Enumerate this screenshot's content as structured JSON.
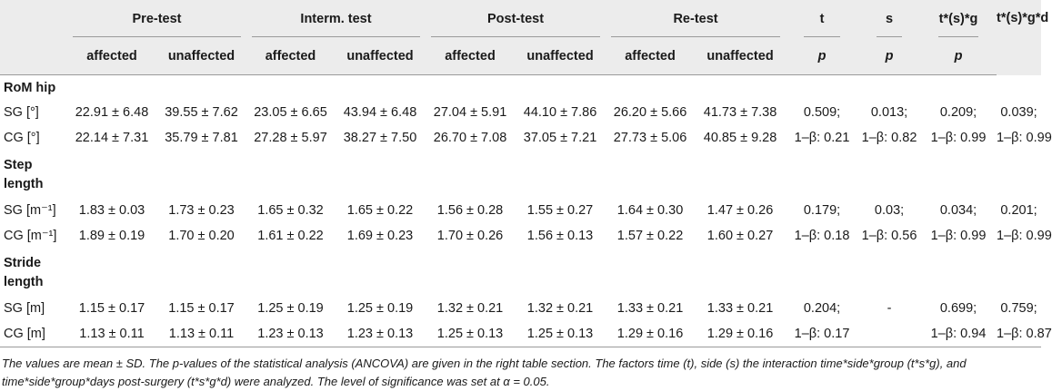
{
  "header": {
    "groups": [
      "Pre-test",
      "Interm. test",
      "Post-test",
      "Re-test"
    ],
    "stat_cols": [
      "t",
      "s",
      "t*(s)*g",
      "t*(s)*g*d"
    ],
    "sub_labels": [
      "affected",
      "unaffected"
    ],
    "p_label": "p"
  },
  "sections": [
    {
      "title": "RoM hip",
      "rows": [
        {
          "label": "SG [°]",
          "cells": [
            "22.91 ± 6.48",
            "39.55 ± 7.62",
            "23.05 ± 6.65",
            "43.94 ± 6.48",
            "27.04 ± 5.91",
            "44.10 ± 7.86",
            "26.20 ± 5.66",
            "41.73 ± 7.38"
          ],
          "stats": [
            "0.509;",
            "0.013;",
            "0.209;",
            "0.039;"
          ]
        },
        {
          "label": "CG [°]",
          "cells": [
            "22.14 ± 7.31",
            "35.79 ± 7.81",
            "27.28 ± 5.97",
            "38.27 ± 7.50",
            "26.70 ± 7.08",
            "37.05 ± 7.21",
            "27.73 ± 5.06",
            "40.85 ± 9.28"
          ],
          "stats": [
            "1–β: 0.21",
            "1–β: 0.82",
            "1–β: 0.99",
            "1–β: 0.99"
          ]
        }
      ]
    },
    {
      "title_lines": [
        "Step",
        "length"
      ],
      "rows": [
        {
          "label": "SG [m⁻¹]",
          "cells": [
            "1.83 ± 0.03",
            "1.73 ± 0.23",
            "1.65 ± 0.32",
            "1.65 ± 0.22",
            "1.56 ± 0.28",
            "1.55 ± 0.27",
            "1.64 ± 0.30",
            "1.47 ± 0.26"
          ],
          "stats": [
            "0.179;",
            "0.03;",
            "0.034;",
            "0.201;"
          ]
        },
        {
          "label": "CG [m⁻¹]",
          "cells": [
            "1.89 ± 0.19",
            "1.70 ± 0.20",
            "1.61 ± 0.22",
            "1.69 ± 0.23",
            "1.70 ± 0.26",
            "1.56 ± 0.13",
            "1.57 ± 0.22",
            "1.60 ± 0.27"
          ],
          "stats": [
            "1–β: 0.18",
            "1–β: 0.56",
            "1–β: 0.99",
            "1–β: 0.99"
          ]
        }
      ]
    },
    {
      "title_lines": [
        "Stride",
        "length"
      ],
      "rows": [
        {
          "label": "SG [m]",
          "cells": [
            "1.15 ± 0.17",
            "1.15 ± 0.17",
            "1.25 ± 0.19",
            "1.25 ± 0.19",
            "1.32 ± 0.21",
            "1.32 ± 0.21",
            "1.33 ± 0.21",
            "1.33 ± 0.21"
          ],
          "stats": [
            "0.204;",
            "-",
            "0.699;",
            "0.759;"
          ]
        },
        {
          "label": "CG [m]",
          "cells": [
            "1.13 ± 0.11",
            "1.13 ± 0.11",
            "1.23 ± 0.13",
            "1.23 ± 0.13",
            "1.25 ± 0.13",
            "1.25 ± 0.13",
            "1.29 ± 0.16",
            "1.29 ± 0.16"
          ],
          "stats": [
            "1–β: 0.17",
            "",
            "1–β: 0.94",
            "1–β: 0.87"
          ]
        }
      ]
    }
  ],
  "footnote": "The values are mean ± SD. The p-values of the statistical analysis (ANCOVA) are given in the right table section. The factors time (t), side (s) the interaction time*side*group (t*s*g), and time*side*group*days post-surgery (t*s*g*d) were analyzed. The level of significance was set at α = 0.05."
}
